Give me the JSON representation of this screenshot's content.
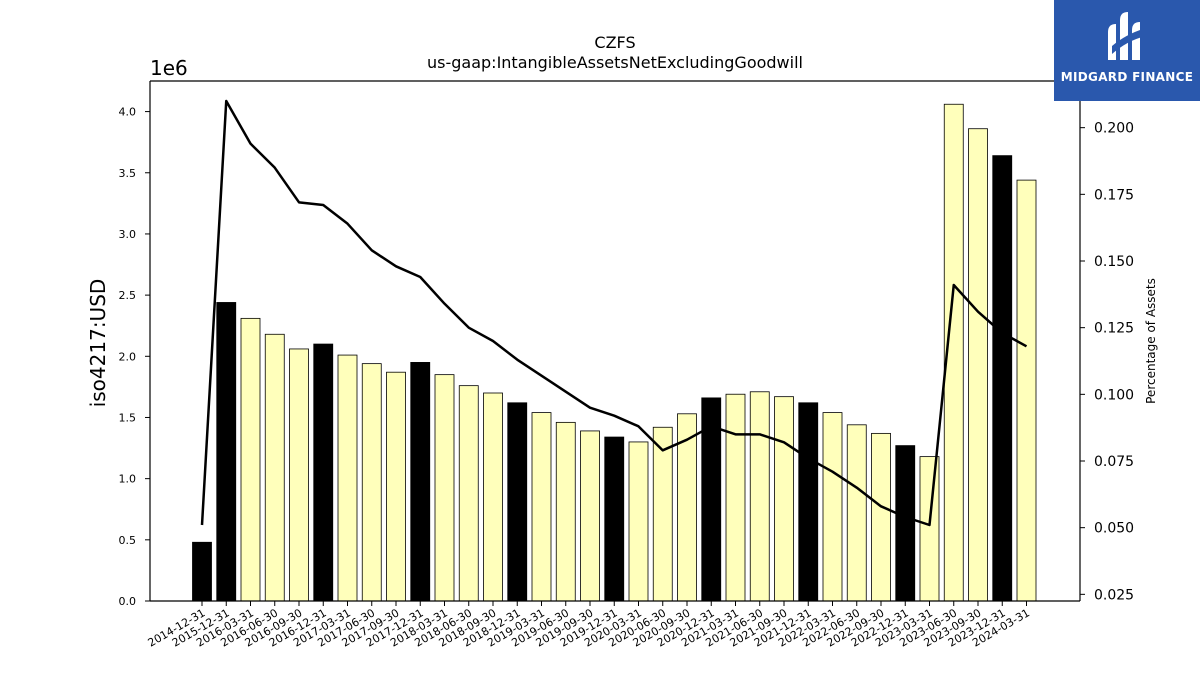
{
  "chart_data": {
    "type": "bar",
    "title": "CZFS",
    "subtitle": "us-gaap:IntangibleAssetsNetExcludingGoodwill",
    "ylabel": "iso4217:USD",
    "y_offset_label": "1e6",
    "y2label": "Percentage of Assets",
    "ylim": [
      0,
      4.25
    ],
    "y2lim": [
      0.0225,
      0.2175
    ],
    "yticks": [
      "0.0",
      "0.5",
      "1.0",
      "1.5",
      "2.0",
      "2.5",
      "3.0",
      "3.5",
      "4.0"
    ],
    "y2ticks": [
      "0.025",
      "0.050",
      "0.075",
      "0.100",
      "0.125",
      "0.150",
      "0.175",
      "0.200"
    ],
    "categories": [
      "2014-12-31",
      "2015-12-31",
      "2016-03-31",
      "2016-06-30",
      "2016-09-30",
      "2016-12-31",
      "2017-03-31",
      "2017-06-30",
      "2017-09-30",
      "2017-12-31",
      "2018-03-31",
      "2018-06-30",
      "2018-09-30",
      "2018-12-31",
      "2019-03-31",
      "2019-06-30",
      "2019-09-30",
      "2019-12-31",
      "2020-03-31",
      "2020-06-30",
      "2020-09-30",
      "2020-12-31",
      "2021-03-31",
      "2021-06-30",
      "2021-09-30",
      "2021-12-31",
      "2022-03-31",
      "2022-06-30",
      "2022-09-30",
      "2022-12-31",
      "2023-03-31",
      "2023-06-30",
      "2023-09-30",
      "2023-12-31",
      "2024-03-31"
    ],
    "values": [
      0.48,
      2.44,
      2.31,
      2.18,
      2.06,
      2.1,
      2.01,
      1.94,
      1.87,
      1.95,
      1.85,
      1.76,
      1.7,
      1.62,
      1.54,
      1.46,
      1.39,
      1.34,
      1.3,
      1.42,
      1.53,
      1.66,
      1.69,
      1.71,
      1.67,
      1.62,
      1.54,
      1.44,
      1.37,
      1.27,
      1.18,
      4.06,
      3.86,
      3.64,
      3.44
    ],
    "annual": [
      true,
      true,
      false,
      false,
      false,
      true,
      false,
      false,
      false,
      true,
      false,
      false,
      false,
      true,
      false,
      false,
      false,
      true,
      false,
      false,
      false,
      true,
      false,
      false,
      false,
      true,
      false,
      false,
      false,
      true,
      false,
      false,
      false,
      true,
      false
    ],
    "percent_of_assets": [
      0.051,
      0.21,
      0.194,
      0.185,
      0.172,
      0.171,
      0.164,
      0.154,
      0.148,
      0.144,
      0.134,
      0.125,
      0.12,
      0.113,
      0.107,
      0.101,
      0.095,
      0.092,
      0.088,
      0.079,
      0.083,
      0.088,
      0.085,
      0.085,
      0.082,
      0.076,
      0.071,
      0.065,
      0.058,
      0.054,
      0.051,
      0.141,
      0.131,
      0.123,
      0.118
    ],
    "colors": {
      "annual_bar": "#000000",
      "quarter_bar": "#ffffbb",
      "line": "#000000"
    },
    "grid": false,
    "legend": "none"
  },
  "logo": {
    "text": "MIDGARD FINANCE",
    "bg": "#2a58ad"
  }
}
